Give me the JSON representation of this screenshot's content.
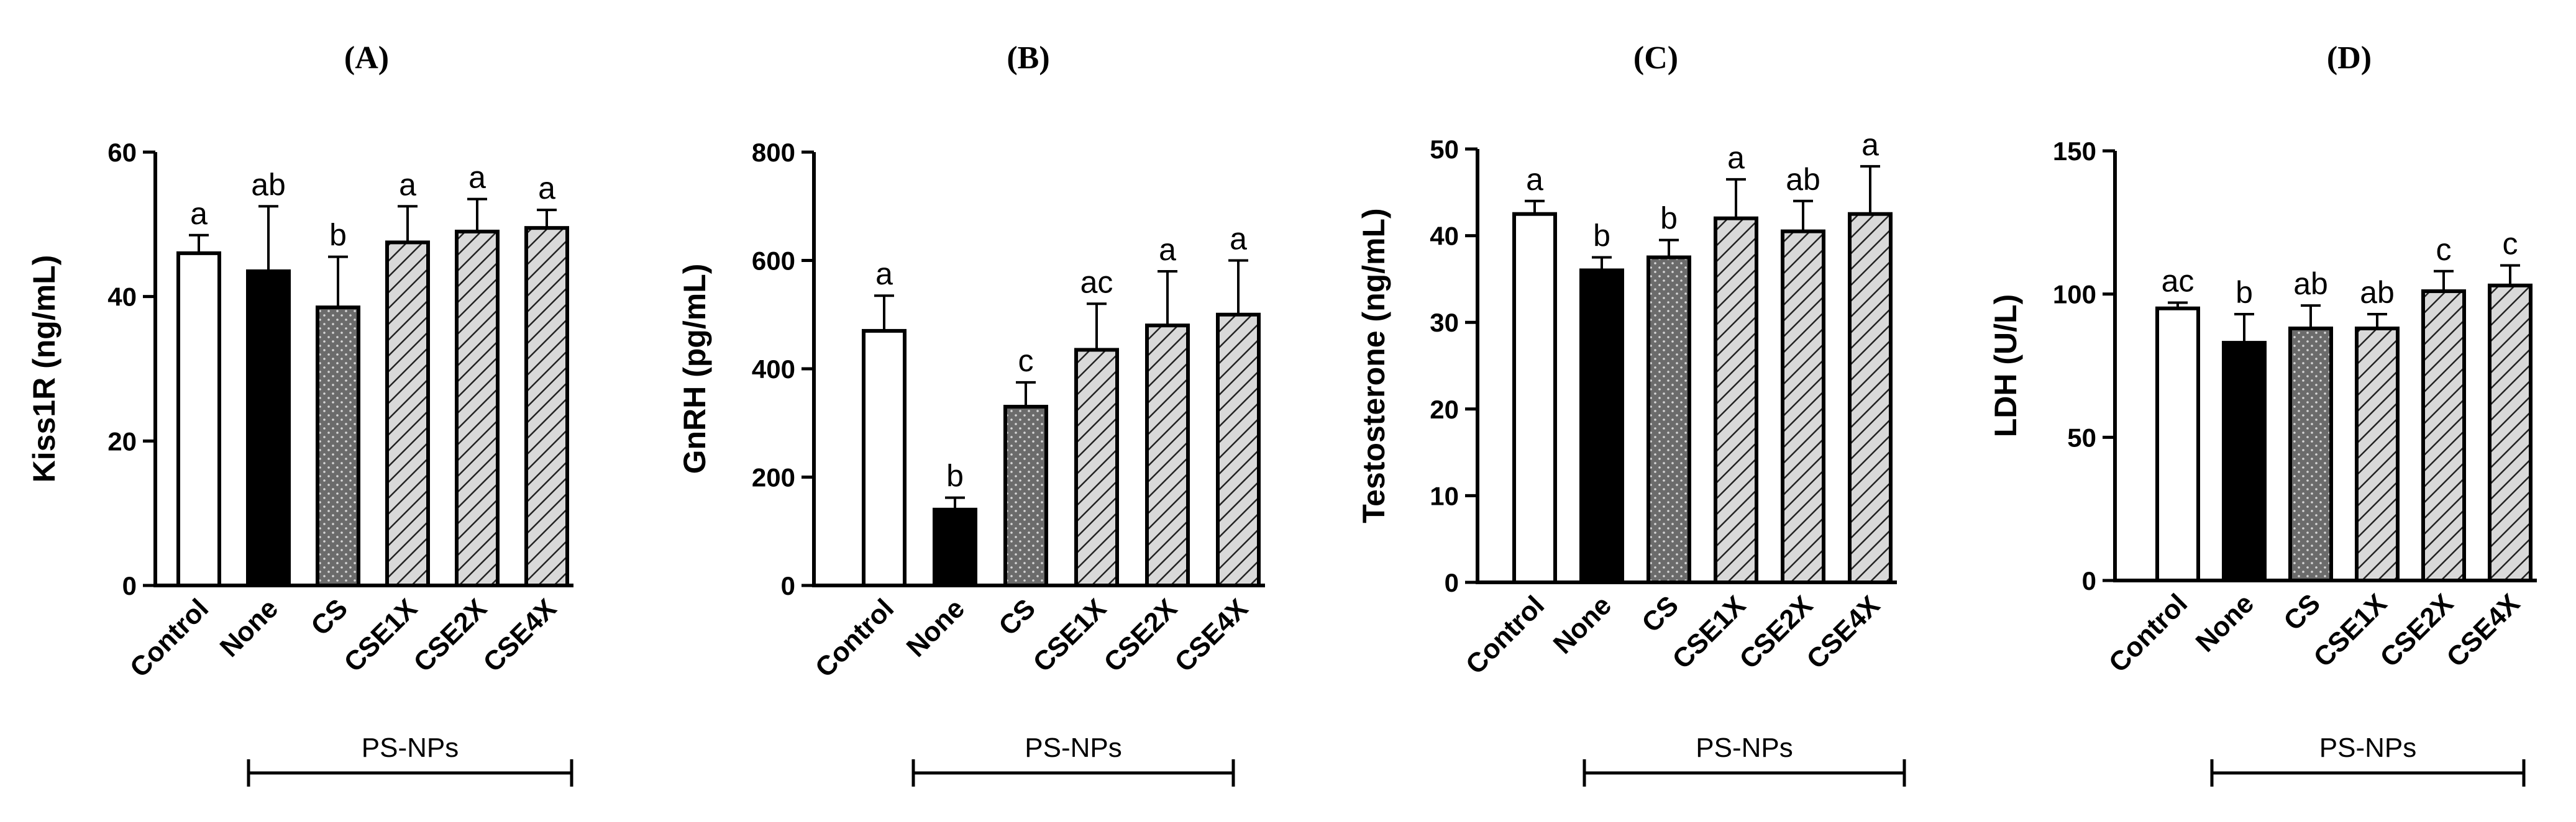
{
  "chart_data": [
    {
      "type": "bar",
      "panel": "(A)",
      "title": "",
      "ylabel": "Kiss1R (ng/mL)",
      "xlabel": "",
      "categories": [
        "Control",
        "None",
        "CS",
        "CSE1X",
        "CSE2X",
        "CSE4X"
      ],
      "values": [
        46,
        43.5,
        38.5,
        47.5,
        49,
        49.5
      ],
      "errors": [
        2.5,
        9,
        7,
        5,
        4.5,
        2.5
      ],
      "significance": [
        "a",
        "ab",
        "b",
        "a",
        "a",
        "a"
      ],
      "ylim": [
        0,
        60
      ],
      "yticks": [
        "0",
        "20",
        "40",
        "60"
      ],
      "group_label": "PS-NPs"
    },
    {
      "type": "bar",
      "panel": "(B)",
      "title": "",
      "ylabel": "GnRH (pg/mL)",
      "xlabel": "",
      "categories": [
        "Control",
        "None",
        "CS",
        "CSE1X",
        "CSE2X",
        "CSE4X"
      ],
      "values": [
        470,
        140,
        330,
        435,
        480,
        500
      ],
      "errors": [
        65,
        22,
        45,
        85,
        100,
        100
      ],
      "significance": [
        "a",
        "b",
        "c",
        "ac",
        "a",
        "a"
      ],
      "ylim": [
        0,
        800
      ],
      "yticks": [
        "0",
        "200",
        "400",
        "600",
        "800"
      ],
      "group_label": "PS-NPs"
    },
    {
      "type": "bar",
      "panel": "(C)",
      "title": "",
      "ylabel": "Testosterone (ng/mL)",
      "xlabel": "",
      "categories": [
        "Control",
        "None",
        "CS",
        "CSE1X",
        "CSE2X",
        "CSE4X"
      ],
      "values": [
        42.5,
        36,
        37.5,
        42,
        40.5,
        42.5
      ],
      "errors": [
        1.5,
        1.5,
        2,
        4.5,
        3.5,
        5.5
      ],
      "significance": [
        "a",
        "b",
        "b",
        "a",
        "ab",
        "a"
      ],
      "ylim": [
        0,
        50
      ],
      "yticks": [
        "0",
        "10",
        "20",
        "30",
        "40",
        "50"
      ],
      "group_label": "PS-NPs"
    },
    {
      "type": "bar",
      "panel": "(D)",
      "title": "",
      "ylabel": "LDH (U/L)",
      "xlabel": "",
      "categories": [
        "Control",
        "None",
        "CS",
        "CSE1X",
        "CSE2X",
        "CSE4X"
      ],
      "values": [
        95,
        83,
        88,
        88,
        101,
        103
      ],
      "errors": [
        2,
        10,
        8,
        5,
        7,
        7
      ],
      "significance": [
        "ac",
        "b",
        "ab",
        "ab",
        "c",
        "c"
      ],
      "ylim": [
        0,
        150
      ],
      "yticks": [
        "0",
        "50",
        "100",
        "150"
      ],
      "group_label": "PS-NPs"
    }
  ],
  "colors": {
    "control": "#ffffff",
    "none": "#000000",
    "cs": "#6b6b6b",
    "cse": "#d0d0d0",
    "stroke": "#000000"
  }
}
